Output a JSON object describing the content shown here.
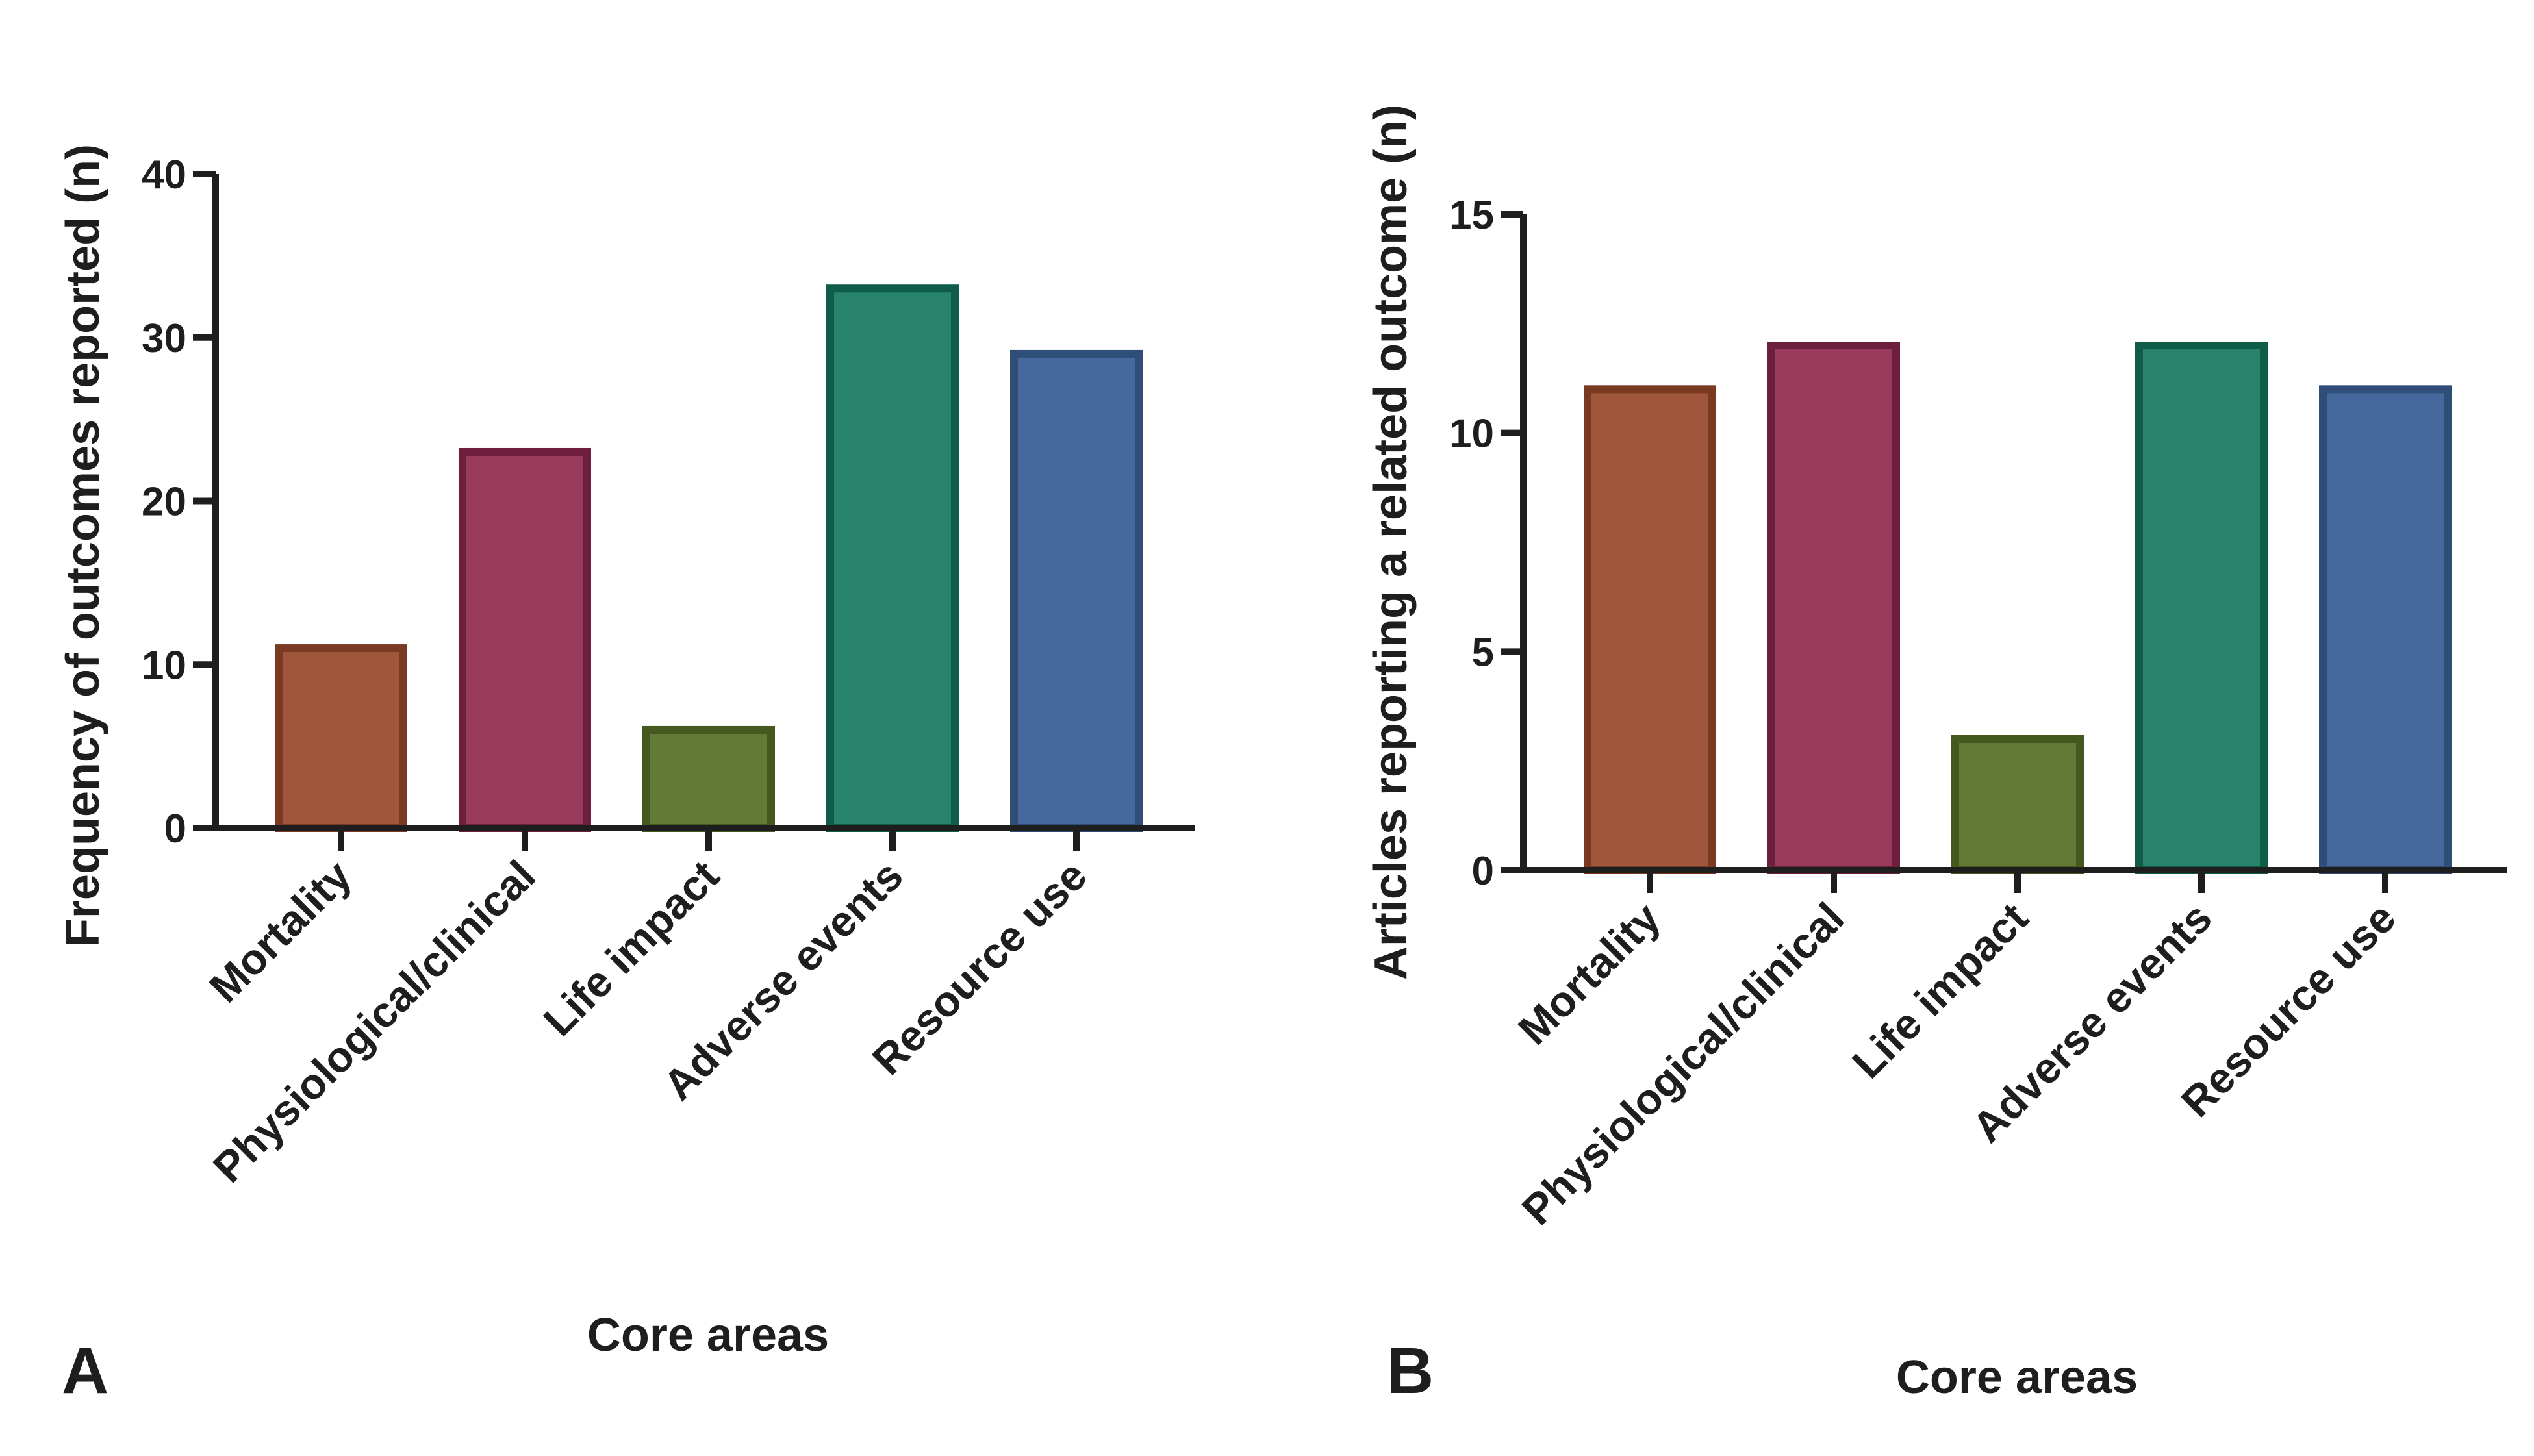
{
  "colors": {
    "axis": "#1e1e1e",
    "bar_fills": [
      "#a0563a",
      "#9a3b5c",
      "#627a35",
      "#27846b",
      "#45699d"
    ],
    "bar_strokes": [
      "#7a3a22",
      "#6e1f3e",
      "#45591f",
      "#0f5c48",
      "#2e4e78"
    ]
  },
  "chart_data": [
    {
      "type": "bar",
      "panel": "A",
      "title": "",
      "xlabel": "Core areas",
      "ylabel": "Frequency of outcomes reported (n)",
      "categories": [
        "Mortality",
        "Physiological/clinical",
        "Life impact",
        "Adverse events",
        "Resource use"
      ],
      "values": [
        11,
        23,
        6,
        33,
        29
      ],
      "ylim": [
        0,
        40
      ],
      "yticks": [
        0,
        10,
        20,
        30,
        40
      ],
      "ytick_labels": [
        "0",
        "10",
        "20",
        "30",
        "40"
      ],
      "grid": false,
      "legend": "none"
    },
    {
      "type": "bar",
      "panel": "B",
      "title": "",
      "xlabel": "Core areas",
      "ylabel": "Articles reporting a related outcome (n)",
      "categories": [
        "Mortality",
        "Physiological/clinical",
        "Life impact",
        "Adverse events",
        "Resource use"
      ],
      "values": [
        11,
        12,
        3,
        12,
        11
      ],
      "ylim": [
        0,
        15
      ],
      "yticks": [
        0,
        5,
        10,
        15
      ],
      "ytick_labels": [
        "0",
        "5",
        "10",
        "15"
      ],
      "grid": false,
      "legend": "none"
    }
  ]
}
